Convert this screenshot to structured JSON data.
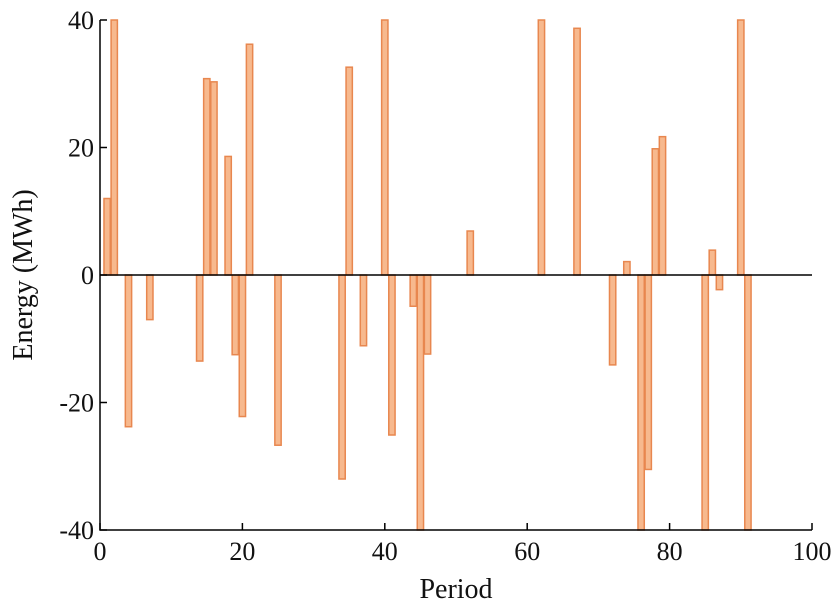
{
  "chart_data": {
    "type": "bar",
    "xlabel": "Period",
    "ylabel": "Energy (MWh)",
    "xlim": [
      0,
      100
    ],
    "ylim": [
      -40,
      40
    ],
    "xticks": [
      "0",
      "20",
      "40",
      "60",
      "80",
      "100"
    ],
    "yticks": [
      "40",
      "20",
      "0",
      "-20",
      "-40"
    ],
    "grid": false,
    "bar_color": "#F7B98E",
    "bar_edge_color": "#E8874F",
    "x": [
      1,
      2,
      4,
      7,
      14,
      15,
      16,
      18,
      19,
      20,
      21,
      25,
      34,
      35,
      37,
      40,
      41,
      44,
      45,
      46,
      52,
      62,
      67,
      72,
      74,
      76,
      77,
      78,
      79,
      85,
      86,
      87,
      90,
      91
    ],
    "values": [
      12,
      40,
      -23.8,
      -7,
      -13.5,
      30.8,
      30.3,
      18.6,
      -12.5,
      -22.2,
      36.2,
      -26.7,
      -32,
      32.6,
      -11.1,
      40,
      -25.1,
      -4.9,
      -40,
      -12.4,
      6.9,
      40,
      38.7,
      -14.1,
      2.1,
      -40,
      -30.5,
      19.8,
      21.7,
      -40,
      3.9,
      -2.3,
      40,
      -40
    ]
  }
}
